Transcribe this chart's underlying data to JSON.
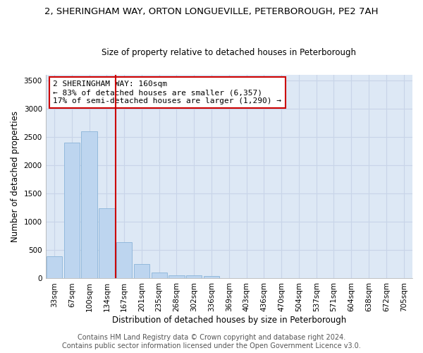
{
  "title_line1": "2, SHERINGHAM WAY, ORTON LONGUEVILLE, PETERBOROUGH, PE2 7AH",
  "title_line2": "Size of property relative to detached houses in Peterborough",
  "xlabel": "Distribution of detached houses by size in Peterborough",
  "ylabel": "Number of detached properties",
  "categories": [
    "33sqm",
    "67sqm",
    "100sqm",
    "134sqm",
    "167sqm",
    "201sqm",
    "235sqm",
    "268sqm",
    "302sqm",
    "336sqm",
    "369sqm",
    "403sqm",
    "436sqm",
    "470sqm",
    "504sqm",
    "537sqm",
    "571sqm",
    "604sqm",
    "638sqm",
    "672sqm",
    "705sqm"
  ],
  "values": [
    390,
    2400,
    2600,
    1240,
    640,
    250,
    100,
    60,
    55,
    40,
    0,
    0,
    0,
    0,
    0,
    0,
    0,
    0,
    0,
    0,
    0
  ],
  "bar_color": "#bdd5ef",
  "bar_edge_color": "#8ab4d8",
  "vline_color": "#cc0000",
  "annotation_text": "2 SHERINGHAM WAY: 160sqm\n← 83% of detached houses are smaller (6,357)\n17% of semi-detached houses are larger (1,290) →",
  "annotation_box_facecolor": "#ffffff",
  "annotation_box_edgecolor": "#cc0000",
  "annotation_fontsize": 8,
  "ylim": [
    0,
    3600
  ],
  "yticks": [
    0,
    500,
    1000,
    1500,
    2000,
    2500,
    3000,
    3500
  ],
  "grid_color": "#c8d4e8",
  "plot_bg_color": "#dde8f5",
  "fig_bg_color": "#ffffff",
  "footer_line1": "Contains HM Land Registry data © Crown copyright and database right 2024.",
  "footer_line2": "Contains public sector information licensed under the Open Government Licence v3.0.",
  "title_fontsize": 9.5,
  "subtitle_fontsize": 8.5,
  "xlabel_fontsize": 8.5,
  "ylabel_fontsize": 8.5,
  "footer_fontsize": 7,
  "tick_fontsize": 7.5,
  "vline_x_index": 4,
  "vline_x_offset": -0.5
}
